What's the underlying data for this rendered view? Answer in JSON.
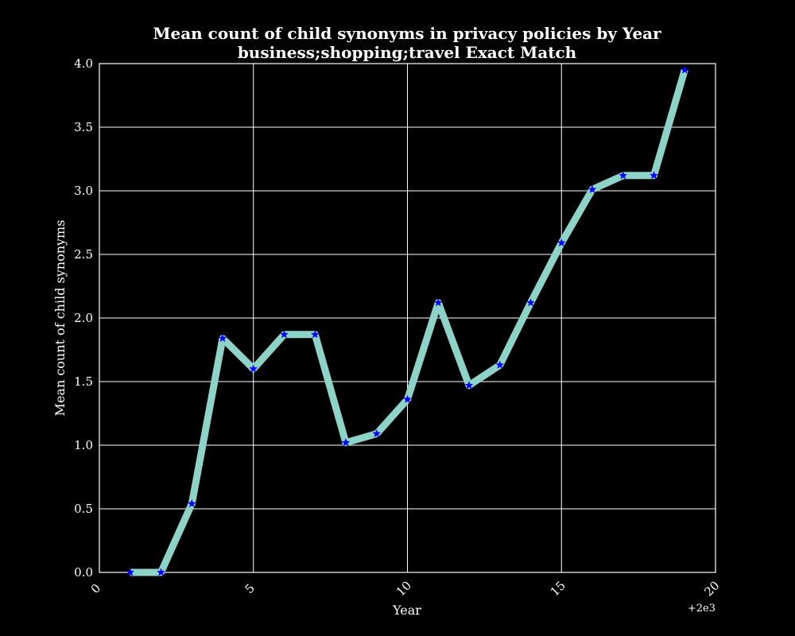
{
  "chart_data": {
    "type": "line",
    "title": "Mean count of child synonyms in privacy policies by Year",
    "subtitle": "business;shopping;travel Exact Match",
    "xlabel": "Year",
    "ylabel": "Mean count of child synonyms",
    "x_offset_label": "+2e3",
    "xlim": [
      0,
      20
    ],
    "ylim": [
      0.0,
      4.0
    ],
    "xticks": [
      0,
      5,
      10,
      15,
      20
    ],
    "xtick_labels": [
      "0",
      "5",
      "10",
      "15",
      "20"
    ],
    "yticks": [
      0.0,
      0.5,
      1.0,
      1.5,
      2.0,
      2.5,
      3.0,
      3.5,
      4.0
    ],
    "ytick_labels": [
      "0.0",
      "0.5",
      "1.0",
      "1.5",
      "2.0",
      "2.5",
      "3.0",
      "3.5",
      "4.0"
    ],
    "grid": true,
    "series": [
      {
        "line_color": "#8dd3c7",
        "marker_color": "#0000ff",
        "marker": "star",
        "x": [
          1,
          2,
          3,
          4,
          5,
          6,
          7,
          8,
          9,
          10,
          11,
          12,
          13,
          14,
          15,
          16,
          17,
          18,
          19
        ],
        "values": [
          0.0,
          0.0,
          0.54,
          1.84,
          1.6,
          1.87,
          1.87,
          1.02,
          1.09,
          1.36,
          2.12,
          1.47,
          1.63,
          2.12,
          2.59,
          3.01,
          3.12,
          3.12,
          3.95
        ]
      }
    ]
  }
}
